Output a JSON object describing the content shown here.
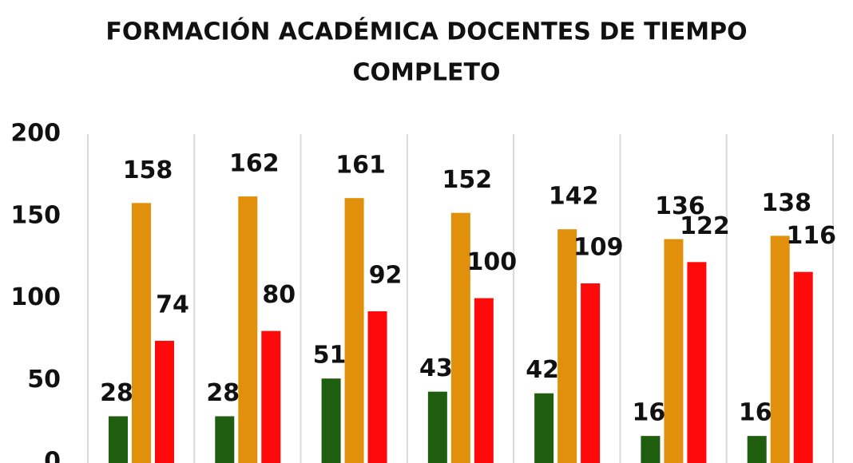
{
  "chart_data": {
    "type": "bar",
    "title": [
      "FORMACIÓN ACADÉMICA DOCENTES DE TIEMPO",
      "COMPLETO"
    ],
    "categories": [
      "",
      "",
      "",
      "",
      "",
      "",
      ""
    ],
    "series": [
      {
        "color": "#1e5e0e",
        "values": [
          28,
          28,
          51,
          43,
          42,
          16,
          16
        ]
      },
      {
        "color": "#e0900a",
        "values": [
          158,
          162,
          161,
          152,
          142,
          136,
          138
        ]
      },
      {
        "color": "#ff0a0a",
        "values": [
          74,
          80,
          92,
          100,
          109,
          122,
          116
        ]
      }
    ],
    "ylim": [
      0,
      200
    ],
    "yticks": [
      0,
      50,
      100,
      150,
      200
    ],
    "grid": "vertical separators between categories",
    "legend": "none"
  }
}
